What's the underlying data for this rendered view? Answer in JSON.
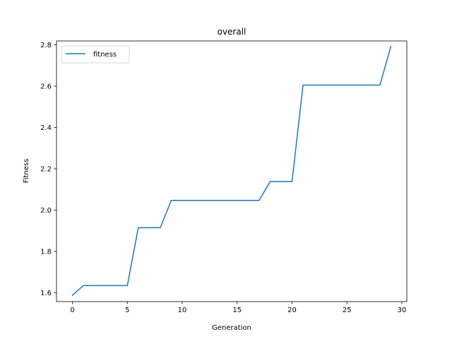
{
  "chart_data": {
    "type": "line",
    "title": "overall",
    "xlabel": "Generation",
    "ylabel": "Fitness",
    "xlim": [
      -1.45,
      30.45
    ],
    "ylim": [
      1.5575,
      2.8185
    ],
    "xticks": [
      0,
      5,
      10,
      15,
      20,
      25,
      30
    ],
    "yticks": [
      1.6,
      1.8,
      2.0,
      2.2,
      2.4,
      2.6,
      2.8
    ],
    "ytick_labels": [
      "1.6",
      "1.8",
      "2.0",
      "2.2",
      "2.4",
      "2.6",
      "2.8"
    ],
    "grid": false,
    "legend": {
      "position": "top-left"
    },
    "series": [
      {
        "name": "fitness",
        "color": "#1f77b4",
        "x": [
          0,
          1,
          2,
          3,
          4,
          5,
          6,
          7,
          8,
          9,
          10,
          11,
          12,
          13,
          14,
          15,
          16,
          17,
          18,
          19,
          20,
          21,
          22,
          23,
          24,
          25,
          26,
          27,
          28,
          29
        ],
        "y": [
          1.588,
          1.635,
          1.635,
          1.635,
          1.635,
          1.635,
          1.915,
          1.915,
          1.915,
          2.047,
          2.047,
          2.047,
          2.047,
          2.047,
          2.047,
          2.047,
          2.047,
          2.047,
          2.138,
          2.138,
          2.138,
          2.605,
          2.605,
          2.605,
          2.605,
          2.605,
          2.605,
          2.605,
          2.605,
          2.792
        ]
      }
    ]
  }
}
